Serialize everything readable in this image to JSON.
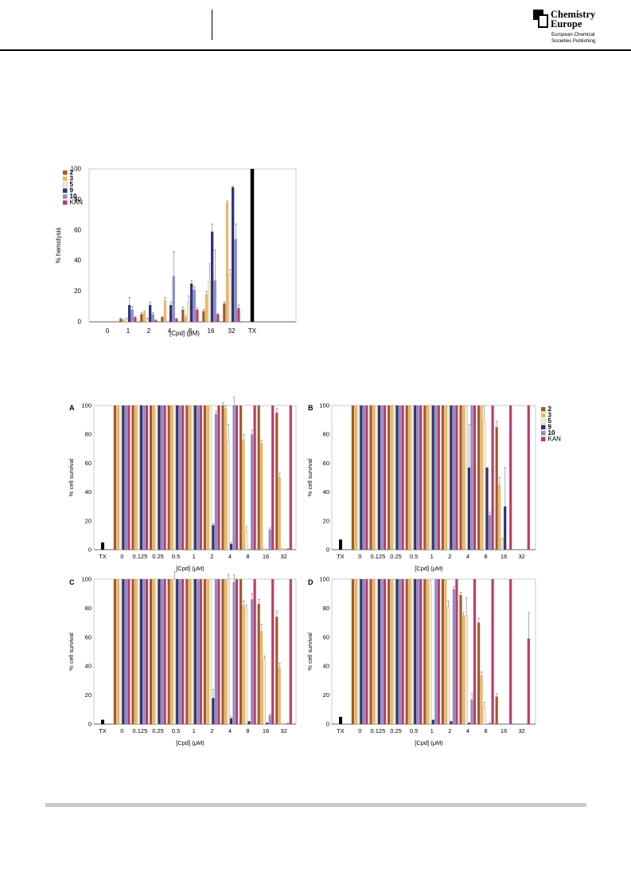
{
  "header": {
    "brand_line1": "Chemistry",
    "brand_line2": "Europe",
    "brand_sub1": "European Chemical",
    "brand_sub2": "Societies Publishing"
  },
  "colors": {
    "2": "#a35a2b",
    "3": "#e9b868",
    "5": "#f6ecd2",
    "9": "#2f3478",
    "10": "#8c8dc9",
    "KAN": "#c23a66",
    "TX": "#000000"
  },
  "legend": [
    {
      "key": "2",
      "label": "2"
    },
    {
      "key": "3",
      "label": "3"
    },
    {
      "key": "5",
      "label": "5"
    },
    {
      "key": "9",
      "label": "9"
    },
    {
      "key": "10",
      "label": "10"
    },
    {
      "key": "KAN",
      "label": "KAN"
    }
  ],
  "chart_data": [
    {
      "type": "bar",
      "ylabel": "% hemolysis",
      "xlabel": "[Cpd] (μM)",
      "ylim": [
        0,
        100
      ],
      "yticks": [
        0,
        20,
        40,
        60,
        80,
        100
      ],
      "categories": [
        "0",
        "1",
        "2",
        "4",
        "8",
        "16",
        "32"
      ],
      "control": {
        "label": "TX",
        "value": 100
      },
      "series": [
        {
          "name": "2",
          "values": [
            0,
            2,
            5,
            3,
            8,
            7,
            12
          ],
          "err": [
            0,
            0.5,
            1,
            0.5,
            1.5,
            1,
            1
          ]
        },
        {
          "name": "3",
          "values": [
            0,
            1,
            6,
            14,
            3,
            18,
            78
          ],
          "err": [
            0,
            0.5,
            1,
            2,
            1,
            2,
            1
          ]
        },
        {
          "name": "5",
          "values": [
            0,
            2,
            2,
            0,
            13,
            26,
            31
          ],
          "err": [
            0,
            0.5,
            0.5,
            0,
            4,
            12,
            3
          ]
        },
        {
          "name": "9",
          "values": [
            0,
            11,
            11,
            11,
            25,
            59,
            88
          ],
          "err": [
            0,
            5,
            2,
            2,
            2,
            5,
            1
          ]
        },
        {
          "name": "10",
          "values": [
            0,
            8,
            5,
            30,
            21,
            27,
            54
          ],
          "err": [
            0,
            2,
            1,
            16,
            2,
            20,
            10
          ]
        },
        {
          "name": "KAN",
          "values": [
            0,
            3,
            1,
            2,
            8,
            5,
            9
          ],
          "err": [
            0,
            0.5,
            0.5,
            0.5,
            1,
            0.5,
            2
          ]
        }
      ]
    },
    {
      "panel": "A",
      "type": "bar",
      "ylabel": "% cell survival",
      "xlabel": "[Cpd] (μM)",
      "ylim": [
        0,
        100
      ],
      "yticks": [
        0,
        20,
        40,
        60,
        80,
        100
      ],
      "categories": [
        "0",
        "0.125",
        "0.25",
        "0.5",
        "1",
        "2",
        "4",
        "8",
        "16",
        "32"
      ],
      "control": {
        "label": "TX",
        "value": 5
      },
      "series": [
        {
          "name": "2",
          "values": [
            100,
            100,
            100,
            100,
            100,
            100,
            100,
            100,
            100,
            95
          ],
          "err": [
            0,
            0,
            0,
            0,
            0,
            0,
            2,
            0,
            0,
            3
          ]
        },
        {
          "name": "3",
          "values": [
            100,
            100,
            100,
            100,
            100,
            100,
            98,
            76,
            74,
            50
          ],
          "err": [
            0,
            0,
            0,
            0,
            0,
            0,
            2,
            4,
            2,
            3
          ]
        },
        {
          "name": "5",
          "values": [
            100,
            100,
            100,
            100,
            100,
            100,
            75,
            13,
            1,
            1
          ],
          "err": [
            0,
            0,
            0,
            0,
            0,
            0,
            12,
            3,
            0,
            0
          ]
        },
        {
          "name": "9",
          "values": [
            100,
            100,
            100,
            100,
            100,
            17,
            4,
            0,
            0,
            0
          ],
          "err": [
            0,
            0,
            0,
            0,
            0,
            1,
            1,
            0,
            0,
            0
          ]
        },
        {
          "name": "10",
          "values": [
            100,
            100,
            100,
            100,
            100,
            94,
            100,
            80,
            14,
            1
          ],
          "err": [
            0,
            0,
            0,
            0,
            0,
            2,
            6,
            3,
            1,
            0
          ]
        },
        {
          "name": "KAN",
          "values": [
            100,
            100,
            100,
            100,
            100,
            100,
            100,
            100,
            100,
            100
          ],
          "err": [
            0,
            0,
            0,
            0,
            0,
            0,
            0,
            0,
            0,
            0
          ]
        }
      ]
    },
    {
      "panel": "B",
      "type": "bar",
      "ylabel": "% cell survival",
      "xlabel": "[Cpd] (μM)",
      "ylim": [
        0,
        100
      ],
      "yticks": [
        0,
        20,
        40,
        60,
        80,
        100
      ],
      "categories": [
        "0",
        "0.125",
        "0.25",
        "0.5",
        "1",
        "2",
        "4",
        "8",
        "16",
        "32"
      ],
      "control": {
        "label": "TX",
        "value": 7
      },
      "series": [
        {
          "name": "2",
          "values": [
            100,
            100,
            100,
            100,
            100,
            100,
            100,
            100,
            85,
            0
          ],
          "err": [
            0,
            0,
            0,
            0,
            0,
            0,
            0,
            0,
            4,
            0
          ]
        },
        {
          "name": "3",
          "values": [
            100,
            100,
            100,
            100,
            100,
            100,
            100,
            100,
            45,
            0
          ],
          "err": [
            0,
            0,
            0,
            0,
            0,
            0,
            0,
            0,
            5,
            0
          ]
        },
        {
          "name": "5",
          "values": [
            100,
            100,
            100,
            100,
            100,
            100,
            100,
            90,
            7,
            0
          ],
          "err": [
            0,
            0,
            0,
            0,
            0,
            0,
            0,
            10,
            1,
            0
          ]
        },
        {
          "name": "9",
          "values": [
            100,
            100,
            100,
            100,
            100,
            100,
            57,
            57,
            30,
            0
          ],
          "err": [
            0,
            0,
            0,
            0,
            0,
            0,
            30,
            0,
            27,
            0
          ]
        },
        {
          "name": "10",
          "values": [
            100,
            100,
            100,
            100,
            100,
            100,
            100,
            24,
            0,
            0
          ],
          "err": [
            0,
            0,
            0,
            0,
            0,
            0,
            0,
            2,
            0,
            0
          ]
        },
        {
          "name": "KAN",
          "values": [
            100,
            100,
            100,
            100,
            100,
            100,
            100,
            100,
            100,
            100
          ],
          "err": [
            0,
            0,
            0,
            0,
            0,
            0,
            0,
            0,
            0,
            0
          ]
        }
      ]
    },
    {
      "panel": "C",
      "type": "bar",
      "ylabel": "% cell survival",
      "xlabel": "[Cpd] (μM)",
      "ylim": [
        0,
        100
      ],
      "yticks": [
        0,
        20,
        40,
        60,
        80,
        100
      ],
      "categories": [
        "0",
        "0.125",
        "0.25",
        "0.5",
        "1",
        "2",
        "4",
        "8",
        "16",
        "32"
      ],
      "control": {
        "label": "TX",
        "value": 3
      },
      "series": [
        {
          "name": "2",
          "values": [
            100,
            100,
            100,
            100,
            100,
            100,
            100,
            100,
            83,
            74
          ],
          "err": [
            0,
            0,
            0,
            0,
            0,
            0,
            0,
            0,
            3,
            4
          ]
        },
        {
          "name": "3",
          "values": [
            100,
            100,
            100,
            100,
            100,
            100,
            100,
            82,
            64,
            39
          ],
          "err": [
            0,
            0,
            0,
            0,
            0,
            0,
            0,
            3,
            5,
            3
          ]
        },
        {
          "name": "5",
          "values": [
            100,
            100,
            100,
            100,
            100,
            100,
            100,
            80,
            45,
            1
          ],
          "err": [
            0,
            0,
            0,
            5,
            0,
            0,
            3,
            2,
            2,
            0
          ]
        },
        {
          "name": "9",
          "values": [
            100,
            100,
            100,
            100,
            100,
            18,
            4,
            2,
            1,
            0
          ],
          "err": [
            0,
            0,
            0,
            0,
            0,
            6,
            1,
            0,
            0,
            0
          ]
        },
        {
          "name": "10",
          "values": [
            100,
            100,
            100,
            100,
            100,
            100,
            98,
            86,
            6,
            1
          ],
          "err": [
            0,
            0,
            0,
            0,
            0,
            0,
            5,
            4,
            1,
            0
          ]
        },
        {
          "name": "KAN",
          "values": [
            100,
            100,
            100,
            100,
            100,
            100,
            100,
            100,
            100,
            100
          ],
          "err": [
            0,
            0,
            0,
            0,
            0,
            0,
            0,
            0,
            0,
            0
          ]
        }
      ]
    },
    {
      "panel": "D",
      "type": "bar",
      "ylabel": "% cell survival",
      "xlabel": "[Cpd] (μM)",
      "ylim": [
        0,
        100
      ],
      "yticks": [
        0,
        20,
        40,
        60,
        80,
        100
      ],
      "categories": [
        "0",
        "0.125",
        "0.25",
        "0.5",
        "1",
        "2",
        "4",
        "8",
        "16",
        "32"
      ],
      "control": {
        "label": "TX",
        "value": 5
      },
      "series": [
        {
          "name": "2",
          "values": [
            100,
            100,
            100,
            100,
            100,
            100,
            89,
            70,
            19,
            0
          ],
          "err": [
            0,
            0,
            0,
            0,
            0,
            0,
            2,
            3,
            2,
            0
          ]
        },
        {
          "name": "3",
          "values": [
            100,
            100,
            100,
            100,
            100,
            100,
            75,
            34,
            0,
            0
          ],
          "err": [
            0,
            0,
            0,
            0,
            0,
            0,
            2,
            2,
            0,
            0
          ]
        },
        {
          "name": "5",
          "values": [
            100,
            100,
            100,
            100,
            96,
            81,
            75,
            12,
            0,
            0
          ],
          "err": [
            0,
            0,
            0,
            0,
            3,
            4,
            12,
            3,
            0,
            0
          ]
        },
        {
          "name": "9",
          "values": [
            100,
            100,
            100,
            100,
            3,
            2,
            1,
            0,
            0,
            0
          ],
          "err": [
            0,
            0,
            0,
            0,
            0,
            0,
            0,
            0,
            0,
            0
          ]
        },
        {
          "name": "10",
          "values": [
            100,
            100,
            100,
            100,
            100,
            93,
            17,
            1,
            0,
            0
          ],
          "err": [
            0,
            0,
            0,
            0,
            0,
            2,
            4,
            0,
            0,
            0
          ]
        },
        {
          "name": "KAN",
          "values": [
            100,
            100,
            100,
            100,
            100,
            100,
            100,
            100,
            100,
            59
          ],
          "err": [
            0,
            0,
            0,
            0,
            0,
            0,
            0,
            0,
            0,
            18
          ]
        }
      ]
    }
  ]
}
